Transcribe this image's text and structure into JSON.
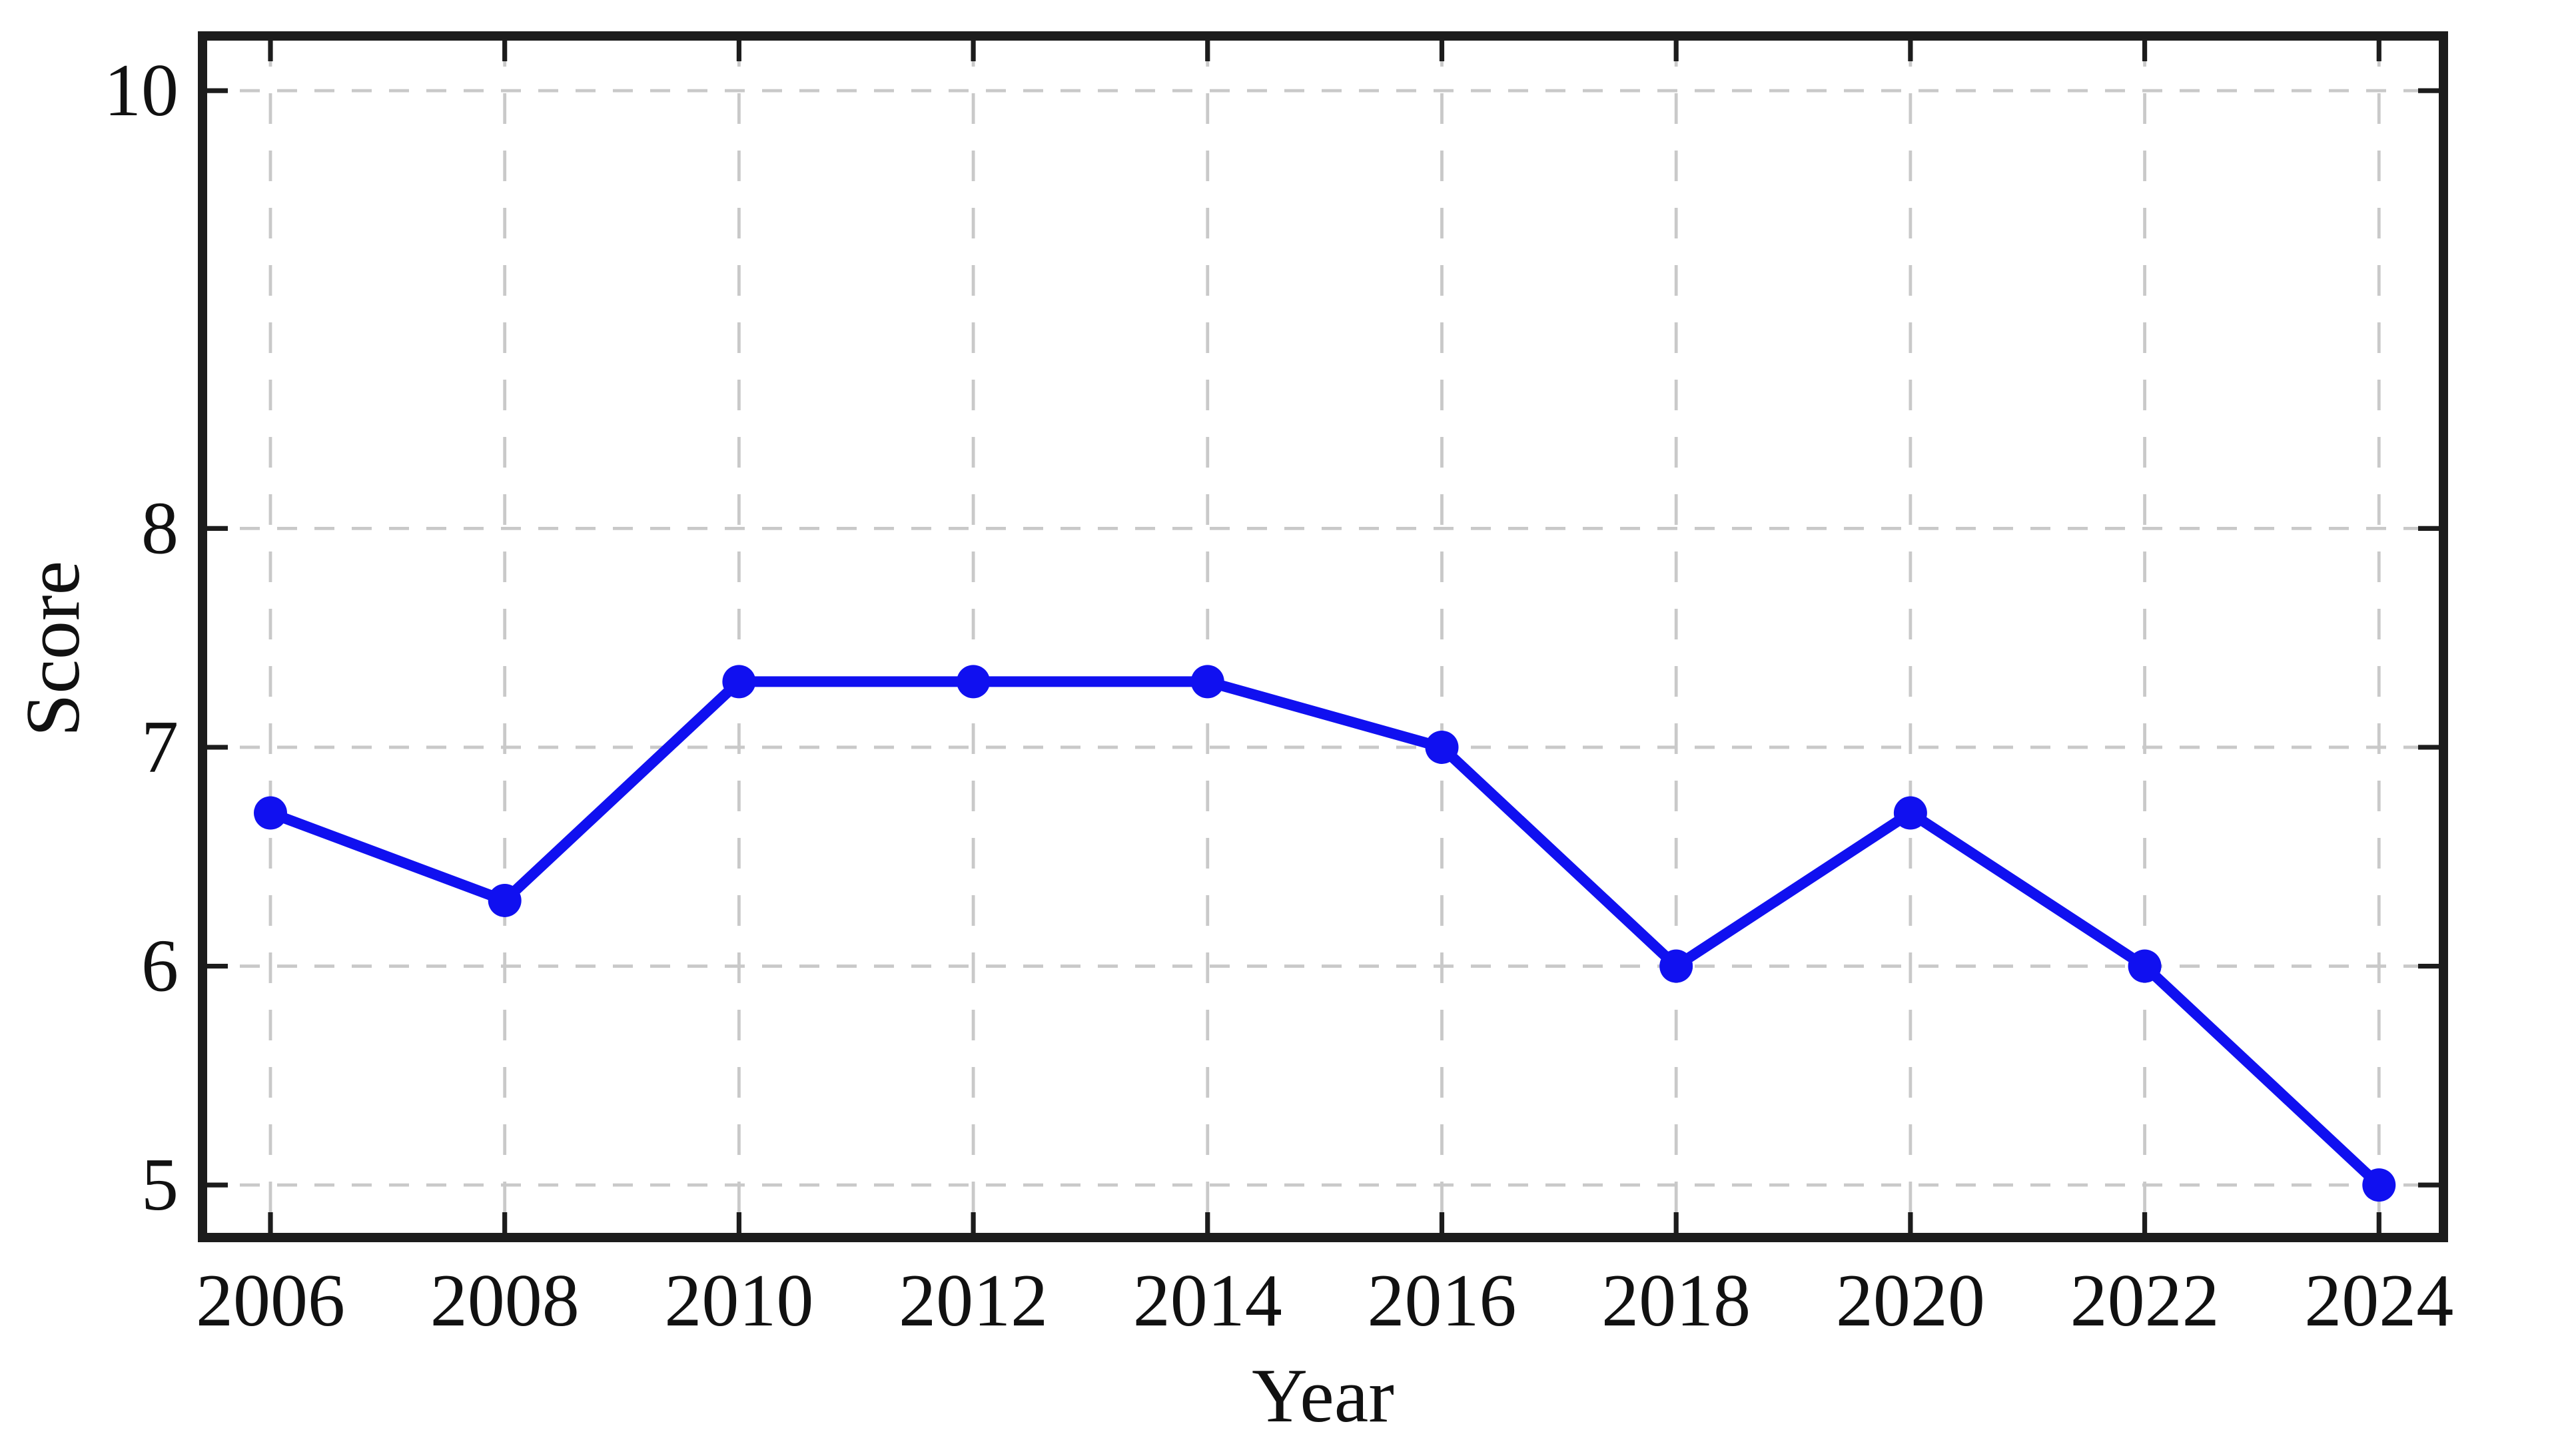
{
  "chart_data": {
    "type": "line",
    "title": "",
    "xlabel": "Year",
    "ylabel": "Score",
    "x": [
      2006,
      2008,
      2010,
      2012,
      2014,
      2016,
      2018,
      2020,
      2022,
      2024
    ],
    "series": [
      {
        "name": "Score",
        "values": [
          6.7,
          6.3,
          7.3,
          7.3,
          7.3,
          7.0,
          6.0,
          6.7,
          6.0,
          5.0
        ]
      }
    ],
    "x_ticks": {
      "values": [
        2006,
        2008,
        2010,
        2012,
        2014,
        2016,
        2018,
        2020,
        2022,
        2024
      ],
      "labels": [
        "2006",
        "2008",
        "2010",
        "2012",
        "2014",
        "2016",
        "2018",
        "2020",
        "2022",
        "2024"
      ]
    },
    "y_ticks": {
      "values": [
        5,
        6,
        7,
        8,
        10
      ],
      "labels": [
        "5",
        "6",
        "7",
        "8",
        "10"
      ]
    },
    "xlim": [
      2005.42,
      2024.55
    ],
    "ylim": [
      4.76,
      10.25
    ],
    "grid": "dashed, both axes",
    "legend": "none",
    "marker": "filled-circle",
    "colors": {
      "line": "#1010f0",
      "marker": "#1010f0",
      "grid": "#c9c9c9",
      "frame": "#1c1c1c",
      "text": "#111111",
      "background": "#ffffff"
    }
  }
}
